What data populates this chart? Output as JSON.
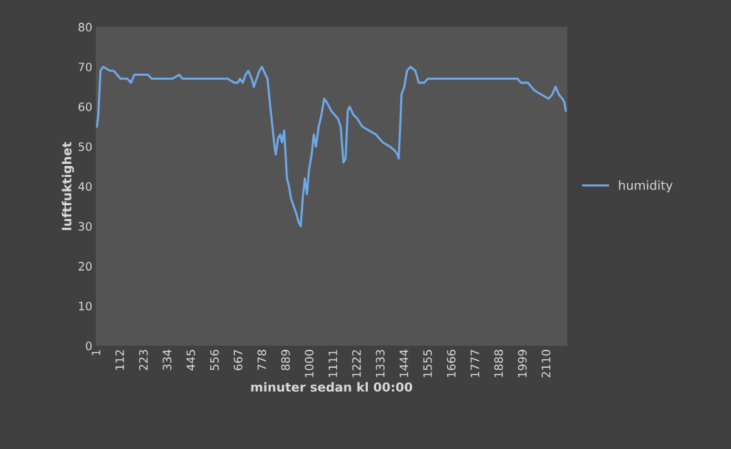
{
  "chart_data": {
    "type": "line",
    "xlabel": "minuter sedan kl 00:00",
    "ylabel": "luftfuktighet",
    "x": [
      1,
      7,
      17,
      30,
      62,
      79,
      95,
      111,
      143,
      160,
      176,
      240,
      257,
      354,
      386,
      402,
      515,
      613,
      645,
      661,
      671,
      684,
      697,
      710,
      726,
      736,
      749,
      762,
      774,
      791,
      800,
      813,
      823,
      833,
      839,
      849,
      859,
      868,
      878,
      885,
      891,
      901,
      910,
      923,
      936,
      946,
      956,
      965,
      975,
      985,
      994,
      1007,
      1017,
      1027,
      1040,
      1053,
      1066,
      1079,
      1098,
      1114,
      1130,
      1143,
      1150,
      1156,
      1166,
      1176,
      1185,
      1202,
      1221,
      1244,
      1276,
      1308,
      1341,
      1373,
      1396,
      1409,
      1415,
      1422,
      1428,
      1441,
      1454,
      1470,
      1493,
      1509,
      1535,
      1551,
      1648,
      1810,
      1972,
      1988,
      2020,
      2053,
      2085,
      2117,
      2134,
      2150,
      2166,
      2182,
      2192,
      2198
    ],
    "series": [
      {
        "name": "humidity",
        "color": "#6fa8e8",
        "values": [
          55,
          58,
          69,
          70,
          69,
          69,
          68,
          67,
          67,
          66,
          68,
          68,
          67,
          67,
          68,
          67,
          67,
          67,
          66,
          66,
          67,
          66,
          68,
          69,
          67,
          65,
          67,
          69,
          70,
          68,
          67,
          60,
          55,
          50,
          48,
          52,
          53,
          51,
          54,
          48,
          42,
          40,
          37,
          35,
          33,
          31,
          30,
          37,
          42,
          38,
          44,
          48,
          53,
          50,
          55,
          58,
          62,
          61,
          59,
          58,
          57,
          55,
          50,
          46,
          47,
          59,
          60,
          58,
          57,
          55,
          54,
          53,
          51,
          50,
          49,
          48,
          47,
          55,
          63,
          65,
          69,
          70,
          69,
          66,
          66,
          67,
          67,
          67,
          67,
          66,
          66,
          64,
          63,
          62,
          63,
          65,
          63,
          62,
          61,
          59
        ]
      }
    ],
    "xlim": [
      -5,
      2205
    ],
    "xticks": [
      1,
      112,
      223,
      334,
      445,
      556,
      667,
      778,
      889,
      1000,
      1111,
      1222,
      1333,
      1444,
      1555,
      1666,
      1777,
      1888,
      1999,
      2110
    ],
    "ylim": [
      0,
      80
    ],
    "yticks": [
      0,
      10,
      20,
      30,
      40,
      50,
      60,
      70,
      80
    ],
    "grid": false,
    "legend": "right",
    "marker": "none",
    "line_style": "solid"
  }
}
